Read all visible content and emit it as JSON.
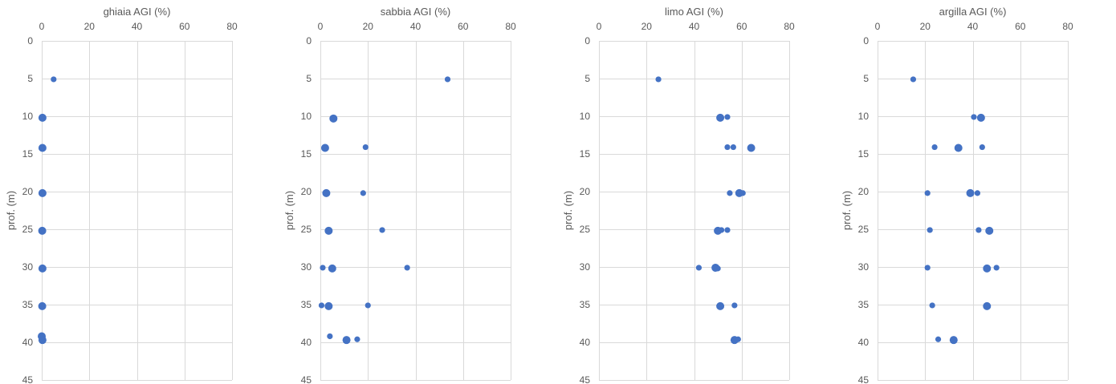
{
  "chart_data": [
    {
      "type": "scatter",
      "title": "ghiaia AGI (%)",
      "xlabel": "",
      "ylabel": "prof. (m)",
      "xlim": [
        0,
        80
      ],
      "ylim": [
        0,
        45
      ],
      "y_inverted": true,
      "x_axis_position": "top",
      "grid": true,
      "color": "#4472c4",
      "x_ticks": [
        "0",
        "20",
        "40",
        "60",
        "80"
      ],
      "y_ticks": [
        "0",
        "5",
        "10",
        "15",
        "20",
        "25",
        "30",
        "35",
        "40",
        "45"
      ],
      "points": [
        {
          "x": 5,
          "y": 5.1,
          "big": false
        },
        {
          "x": 0.3,
          "y": 10.2,
          "big": true
        },
        {
          "x": 0.3,
          "y": 14.2,
          "big": true
        },
        {
          "x": 0.3,
          "y": 20.2,
          "big": true
        },
        {
          "x": 0.2,
          "y": 25.2,
          "big": true
        },
        {
          "x": 0.3,
          "y": 30.2,
          "big": true
        },
        {
          "x": 0.2,
          "y": 35.2,
          "big": true
        },
        {
          "x": 0,
          "y": 39.2,
          "big": true
        },
        {
          "x": 0.3,
          "y": 39.7,
          "big": true
        }
      ]
    },
    {
      "type": "scatter",
      "title": "sabbia AGI (%)",
      "xlabel": "",
      "ylabel": "prof. (m)",
      "xlim": [
        0,
        80
      ],
      "ylim": [
        0,
        45
      ],
      "y_inverted": true,
      "x_axis_position": "top",
      "grid": true,
      "color": "#4472c4",
      "x_ticks": [
        "0",
        "20",
        "40",
        "60",
        "80"
      ],
      "y_ticks": [
        "0",
        "5",
        "10",
        "15",
        "20",
        "25",
        "30",
        "35",
        "40",
        "45"
      ],
      "points": [
        {
          "x": 53.5,
          "y": 5.1,
          "big": false
        },
        {
          "x": 5.5,
          "y": 10.3,
          "big": true
        },
        {
          "x": 2,
          "y": 14.2,
          "big": true
        },
        {
          "x": 19,
          "y": 14.1,
          "big": false
        },
        {
          "x": 2.5,
          "y": 20.2,
          "big": true
        },
        {
          "x": 18,
          "y": 20.2,
          "big": false
        },
        {
          "x": 3.5,
          "y": 25.2,
          "big": true
        },
        {
          "x": 26,
          "y": 25.1,
          "big": false
        },
        {
          "x": 1,
          "y": 30.1,
          "big": false
        },
        {
          "x": 5,
          "y": 30.2,
          "big": true
        },
        {
          "x": 36.5,
          "y": 30.1,
          "big": false
        },
        {
          "x": 0.5,
          "y": 35.1,
          "big": false
        },
        {
          "x": 3.5,
          "y": 35.2,
          "big": true
        },
        {
          "x": 20,
          "y": 35.1,
          "big": false
        },
        {
          "x": 4,
          "y": 39.2,
          "big": false
        },
        {
          "x": 11,
          "y": 39.7,
          "big": true
        },
        {
          "x": 15.5,
          "y": 39.6,
          "big": false
        }
      ]
    },
    {
      "type": "scatter",
      "title": "limo AGI (%)",
      "xlabel": "",
      "ylabel": "prof. (m)",
      "xlim": [
        0,
        80
      ],
      "ylim": [
        0,
        45
      ],
      "y_inverted": true,
      "x_axis_position": "top",
      "grid": true,
      "color": "#4472c4",
      "x_ticks": [
        "0",
        "20",
        "40",
        "60",
        "80"
      ],
      "y_ticks": [
        "0",
        "5",
        "10",
        "15",
        "20",
        "25",
        "30",
        "35",
        "40",
        "45"
      ],
      "points": [
        {
          "x": 25,
          "y": 5.1,
          "big": false
        },
        {
          "x": 51,
          "y": 10.2,
          "big": true
        },
        {
          "x": 54,
          "y": 10.1,
          "big": false
        },
        {
          "x": 54,
          "y": 14.1,
          "big": false
        },
        {
          "x": 56.5,
          "y": 14.1,
          "big": false
        },
        {
          "x": 64,
          "y": 14.2,
          "big": true
        },
        {
          "x": 55,
          "y": 20.2,
          "big": false
        },
        {
          "x": 59,
          "y": 20.2,
          "big": true
        },
        {
          "x": 60.5,
          "y": 20.2,
          "big": false
        },
        {
          "x": 50,
          "y": 25.2,
          "big": true
        },
        {
          "x": 51.5,
          "y": 25.1,
          "big": false
        },
        {
          "x": 54,
          "y": 25.1,
          "big": false
        },
        {
          "x": 42,
          "y": 30.1,
          "big": false
        },
        {
          "x": 49,
          "y": 30.1,
          "big": true
        },
        {
          "x": 50,
          "y": 30.2,
          "big": false
        },
        {
          "x": 51,
          "y": 35.2,
          "big": true
        },
        {
          "x": 57,
          "y": 35.1,
          "big": false
        },
        {
          "x": 57,
          "y": 39.7,
          "big": true
        },
        {
          "x": 58.5,
          "y": 39.6,
          "big": false
        }
      ]
    },
    {
      "type": "scatter",
      "title": "argilla AGI (%)",
      "xlabel": "",
      "ylabel": "prof. (m)",
      "xlim": [
        0,
        80
      ],
      "ylim": [
        0,
        45
      ],
      "y_inverted": true,
      "x_axis_position": "top",
      "grid": true,
      "color": "#4472c4",
      "x_ticks": [
        "0",
        "20",
        "40",
        "60",
        "80"
      ],
      "y_ticks": [
        "0",
        "5",
        "10",
        "15",
        "20",
        "25",
        "30",
        "35",
        "40",
        "45"
      ],
      "points": [
        {
          "x": 15,
          "y": 5.1,
          "big": false
        },
        {
          "x": 40.5,
          "y": 10.1,
          "big": false
        },
        {
          "x": 43.5,
          "y": 10.2,
          "big": true
        },
        {
          "x": 24,
          "y": 14.1,
          "big": false
        },
        {
          "x": 34,
          "y": 14.2,
          "big": true
        },
        {
          "x": 44,
          "y": 14.1,
          "big": false
        },
        {
          "x": 21,
          "y": 20.2,
          "big": false
        },
        {
          "x": 39,
          "y": 20.2,
          "big": true
        },
        {
          "x": 42,
          "y": 20.2,
          "big": false
        },
        {
          "x": 22,
          "y": 25.1,
          "big": false
        },
        {
          "x": 42.5,
          "y": 25.1,
          "big": false
        },
        {
          "x": 47,
          "y": 25.2,
          "big": true
        },
        {
          "x": 21,
          "y": 30.1,
          "big": false
        },
        {
          "x": 46,
          "y": 30.2,
          "big": true
        },
        {
          "x": 50,
          "y": 30.1,
          "big": false
        },
        {
          "x": 23,
          "y": 35.1,
          "big": false
        },
        {
          "x": 46,
          "y": 35.2,
          "big": true
        },
        {
          "x": 25.5,
          "y": 39.6,
          "big": false
        },
        {
          "x": 32,
          "y": 39.7,
          "big": true
        }
      ]
    }
  ]
}
